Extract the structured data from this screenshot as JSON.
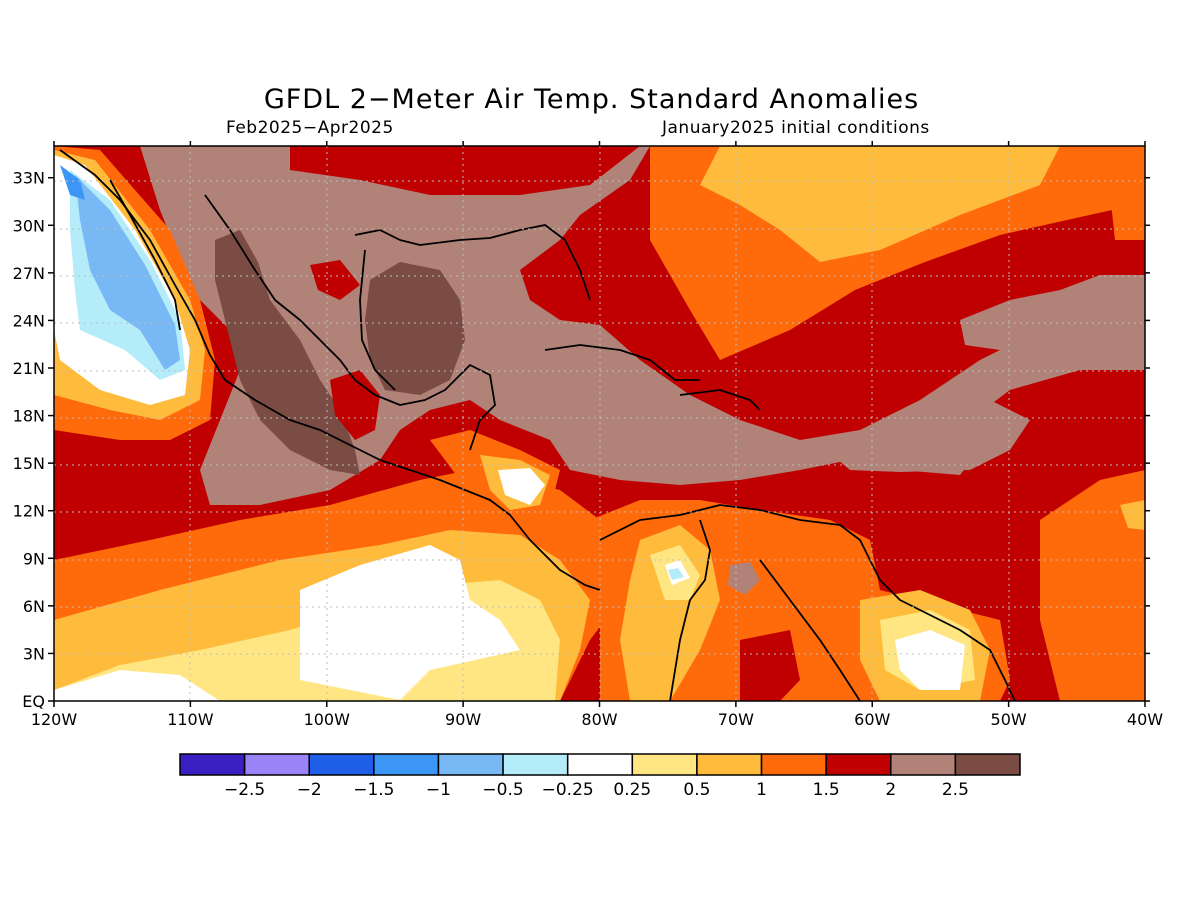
{
  "title": "GFDL 2−Meter Air Temp. Standard Anomalies",
  "period": "Feb2025−Apr2025",
  "initial_conditions": "January2025 initial conditions",
  "lon_labels": [
    "120W",
    "110W",
    "100W",
    "90W",
    "80W",
    "70W",
    "60W",
    "50W",
    "40W"
  ],
  "lat_labels": [
    "EQ",
    "3N",
    "6N",
    "9N",
    "12N",
    "15N",
    "18N",
    "21N",
    "24N",
    "27N",
    "30N",
    "33N"
  ],
  "colorbar": {
    "colors": [
      "#3a1fc2",
      "#9a82f7",
      "#1f5fe8",
      "#3c96f5",
      "#78b8f5",
      "#b4ecfa",
      "#ffffff",
      "#ffe682",
      "#ffbb3c",
      "#ff6a0a",
      "#c00000",
      "#b08278",
      "#7a4c44"
    ],
    "labels": [
      "−2.5",
      "−2",
      "−1.5",
      "−1",
      "−0.5",
      "−0.25",
      "0.25",
      "0.5",
      "1",
      "1.5",
      "2",
      "2.5"
    ]
  }
}
